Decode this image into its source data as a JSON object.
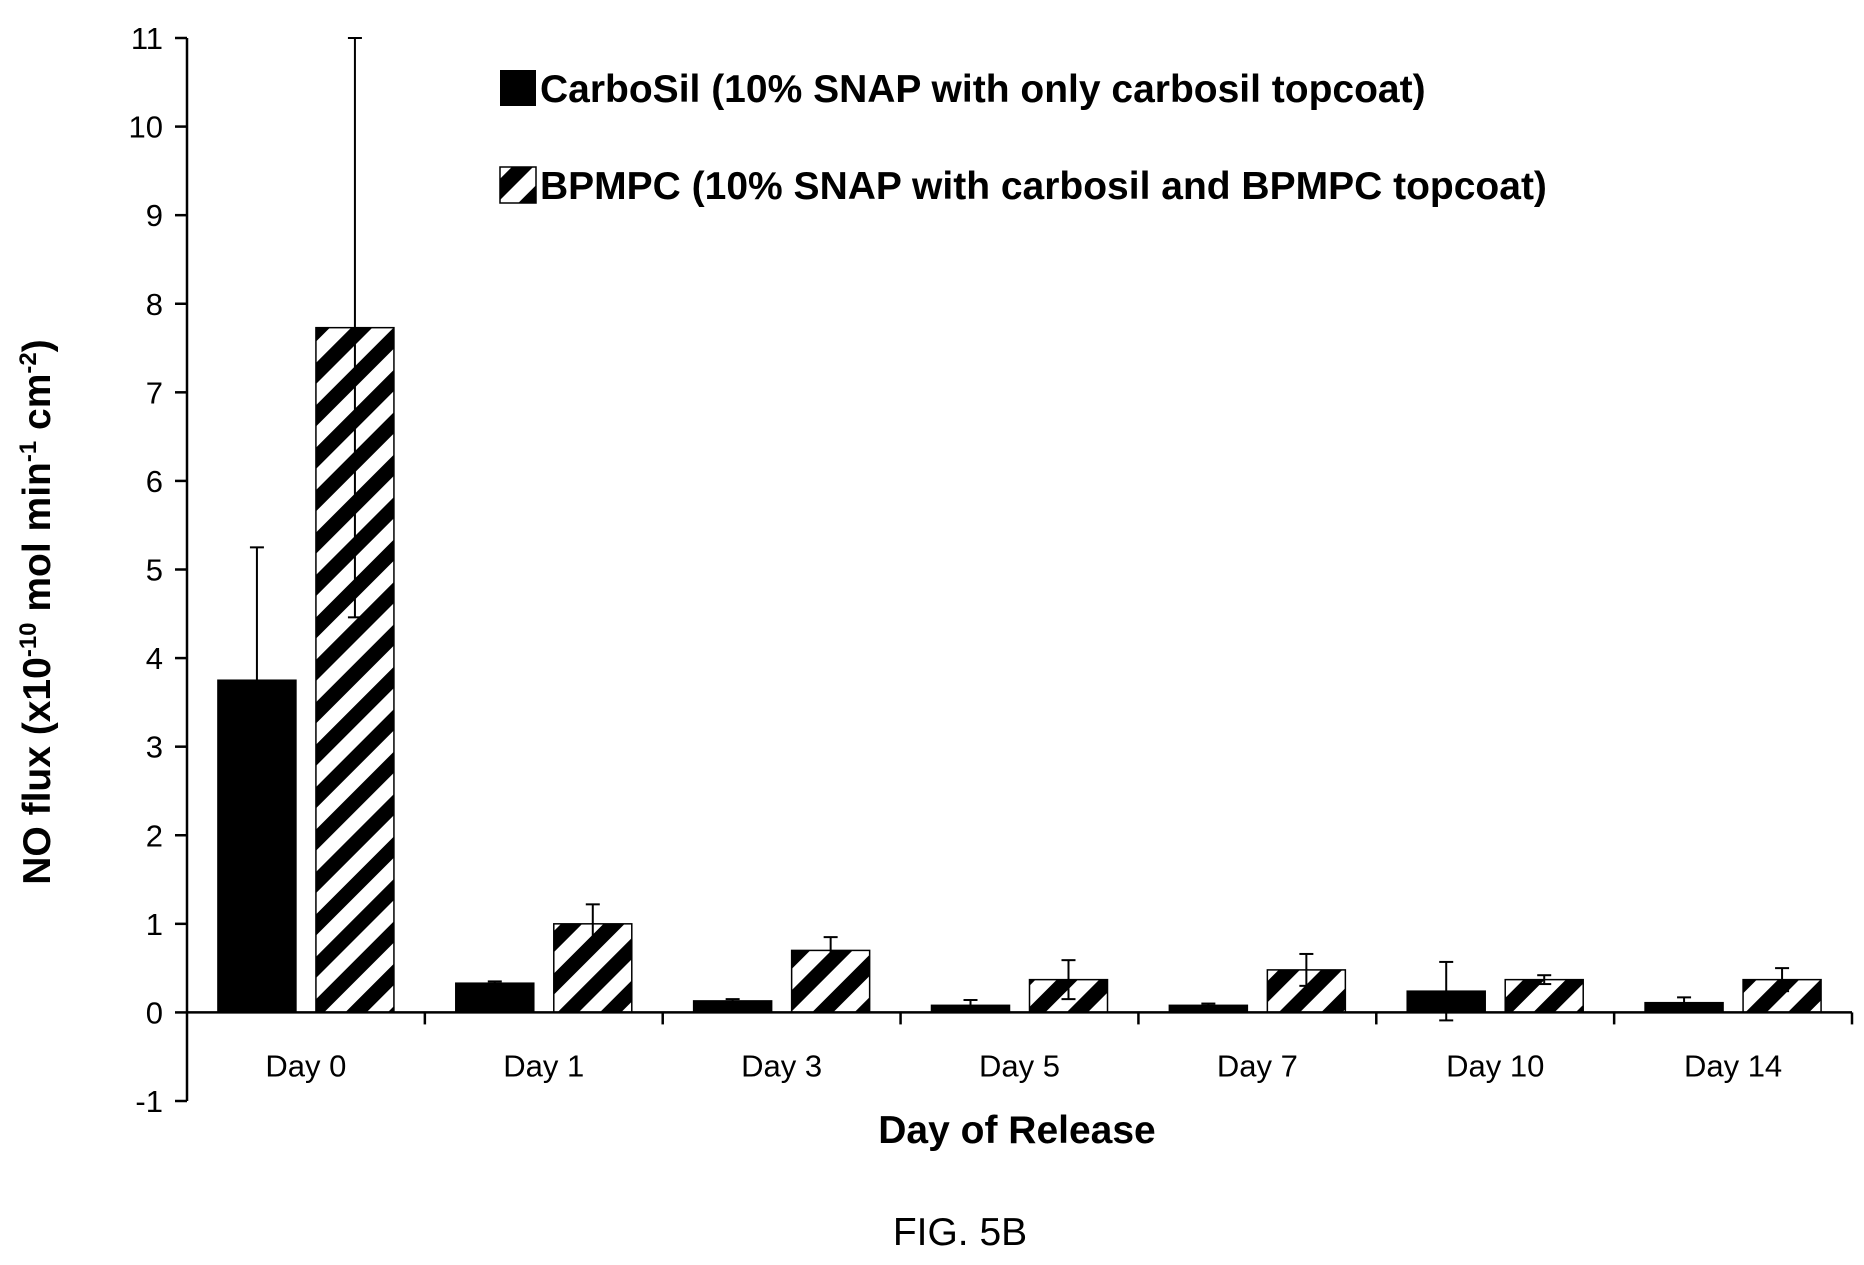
{
  "chart_data": {
    "type": "bar",
    "caption": "FIG. 5B",
    "xlabel": "Day of Release",
    "ylabel_main": "NO flux (x10",
    "ylabel_exp1": "-10",
    "ylabel_mid": " mol min",
    "ylabel_exp2": "-1",
    "ylabel_cm": " cm",
    "ylabel_exp3": "-2",
    "ylabel_close": ")",
    "ylim": [
      -1,
      11
    ],
    "yticks": [
      -1,
      0,
      1,
      2,
      3,
      4,
      5,
      6,
      7,
      8,
      9,
      10,
      11
    ],
    "grid": false,
    "legend_position": "top",
    "categories": [
      "Day 0",
      "Day 1",
      "Day 3",
      "Day 5",
      "Day 7",
      "Day 10",
      "Day 14"
    ],
    "series": [
      {
        "name": "CarboSil (10% SNAP with only carbosil topcoat)",
        "fill": "solid",
        "color": "#000000",
        "values": [
          3.75,
          0.33,
          0.13,
          0.08,
          0.08,
          0.24,
          0.11
        ],
        "error": [
          1.5,
          0.02,
          0.02,
          0.06,
          0.02,
          0.33,
          0.06
        ]
      },
      {
        "name": "BPMPC (10% SNAP with carbosil and BPMPC topcoat)",
        "fill": "diagonal-stripes",
        "color": "#000000",
        "values": [
          7.73,
          1.0,
          0.7,
          0.37,
          0.48,
          0.37,
          0.37
        ],
        "error": [
          3.27,
          0.22,
          0.15,
          0.22,
          0.18,
          0.05,
          0.13
        ]
      }
    ]
  }
}
